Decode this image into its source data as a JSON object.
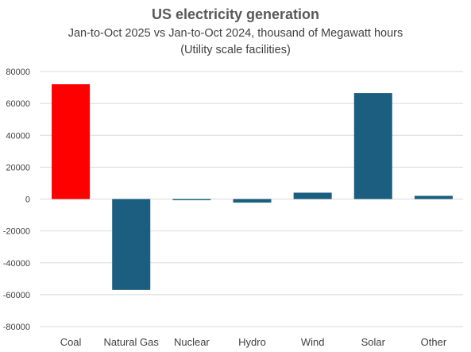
{
  "chart_data": {
    "type": "bar",
    "title": "US electricity generation",
    "subtitle_lines": [
      "Jan-to-Oct 2025 vs Jan-to-Oct 2024, thousand of Megawatt hours",
      "(Utility scale facilities)"
    ],
    "categories": [
      "Coal",
      "Natural Gas",
      "Nuclear",
      "Hydro",
      "Wind",
      "Solar",
      "Other"
    ],
    "values": [
      72000,
      -57000,
      -700,
      -2200,
      4000,
      66500,
      2000
    ],
    "colors": [
      "#ff0000",
      "#1b5e7f",
      "#1b5e7f",
      "#1b5e7f",
      "#1b5e7f",
      "#1b5e7f",
      "#1b5e7f"
    ],
    "ylim": [
      -80000,
      80000
    ],
    "yticks": [
      80000,
      60000,
      40000,
      20000,
      0,
      -20000,
      -40000,
      -60000,
      -80000
    ],
    "grid": true,
    "legend": "none"
  }
}
